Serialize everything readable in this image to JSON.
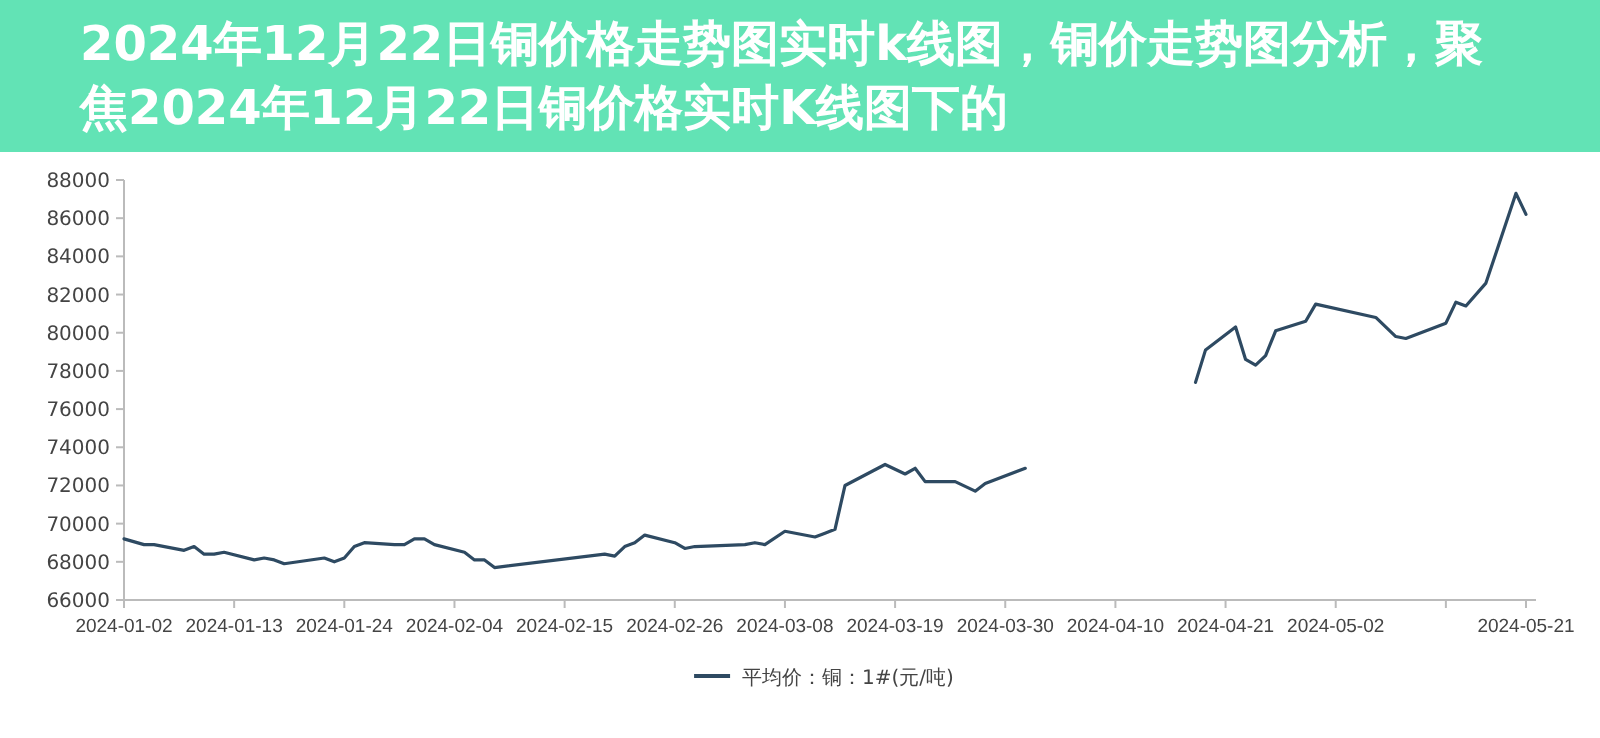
{
  "chart_data": {
    "type": "line",
    "title": "2024年12月22日铜价格走势图实时k线图，铜价走势图分析，聚焦2024年12月22日铜价格实时K线图下的",
    "x": [
      "2024-01-02",
      "2024-01-04",
      "2024-01-05",
      "2024-01-08",
      "2024-01-09",
      "2024-01-10",
      "2024-01-11",
      "2024-01-12",
      "2024-01-15",
      "2024-01-16",
      "2024-01-17",
      "2024-01-18",
      "2024-01-22",
      "2024-01-23",
      "2024-01-24",
      "2024-01-25",
      "2024-01-26",
      "2024-01-29",
      "2024-01-30",
      "2024-01-31",
      "2024-02-01",
      "2024-02-02",
      "2024-02-05",
      "2024-02-06",
      "2024-02-07",
      "2024-02-08",
      "2024-02-19",
      "2024-02-20",
      "2024-02-21",
      "2024-02-22",
      "2024-02-23",
      "2024-02-26",
      "2024-02-27",
      "2024-02-28",
      "2024-03-04",
      "2024-03-05",
      "2024-03-06",
      "2024-03-08",
      "2024-03-11",
      "2024-03-12",
      "2024-03-13",
      "2024-03-14",
      "2024-03-18",
      "2024-03-20",
      "2024-03-21",
      "2024-03-22",
      "2024-03-25",
      "2024-03-27",
      "2024-03-28",
      "2024-04-01",
      "2024-04-10",
      "2024-04-18",
      "2024-04-19",
      "2024-04-22",
      "2024-04-23",
      "2024-04-24",
      "2024-04-25",
      "2024-04-26",
      "2024-04-29",
      "2024-04-30",
      "2024-05-06",
      "2024-05-08",
      "2024-05-09",
      "2024-05-13",
      "2024-05-14",
      "2024-05-15",
      "2024-05-17",
      "2024-05-20",
      "2024-05-21"
    ],
    "series": [
      {
        "name": "平均价：铜：1#(元/吨)",
        "color": "#2e4a62",
        "values": [
          69200,
          68900,
          68900,
          68600,
          68800,
          68400,
          68400,
          68500,
          68100,
          68200,
          68100,
          67900,
          68200,
          68000,
          68200,
          68800,
          69000,
          68900,
          68900,
          69200,
          69200,
          68900,
          68500,
          68100,
          68100,
          67700,
          68400,
          68300,
          68800,
          69000,
          69400,
          69000,
          68700,
          68800,
          68900,
          69000,
          68900,
          69600,
          69300,
          69500,
          69700,
          72000,
          73100,
          72600,
          72900,
          72200,
          72200,
          71700,
          72100,
          72900,
          null,
          77400,
          79100,
          80300,
          78600,
          78300,
          78800,
          80100,
          80600,
          81500,
          80800,
          79800,
          79700,
          80500,
          81600,
          81400,
          82600,
          87300,
          86200
        ]
      }
    ],
    "xlim": [
      "2024-01-02",
      "2024-05-22"
    ],
    "xticks": [
      "2024-01-02",
      "2024-01-13",
      "2024-01-24",
      "2024-02-04",
      "2024-02-15",
      "2024-02-26",
      "2024-03-08",
      "2024-03-19",
      "2024-03-30",
      "2024-04-10",
      "2024-04-21",
      "2024-05-02",
      {
        "value": "2024-05-13",
        "label": null
      },
      "2024-05-21"
    ],
    "ylim": [
      66000,
      88000
    ],
    "yticks": [
      66000,
      68000,
      70000,
      72000,
      74000,
      76000,
      78000,
      80000,
      82000,
      84000,
      86000,
      88000
    ],
    "grid": false,
    "legend": "bottom",
    "marker": "none",
    "line_style": "solid"
  }
}
